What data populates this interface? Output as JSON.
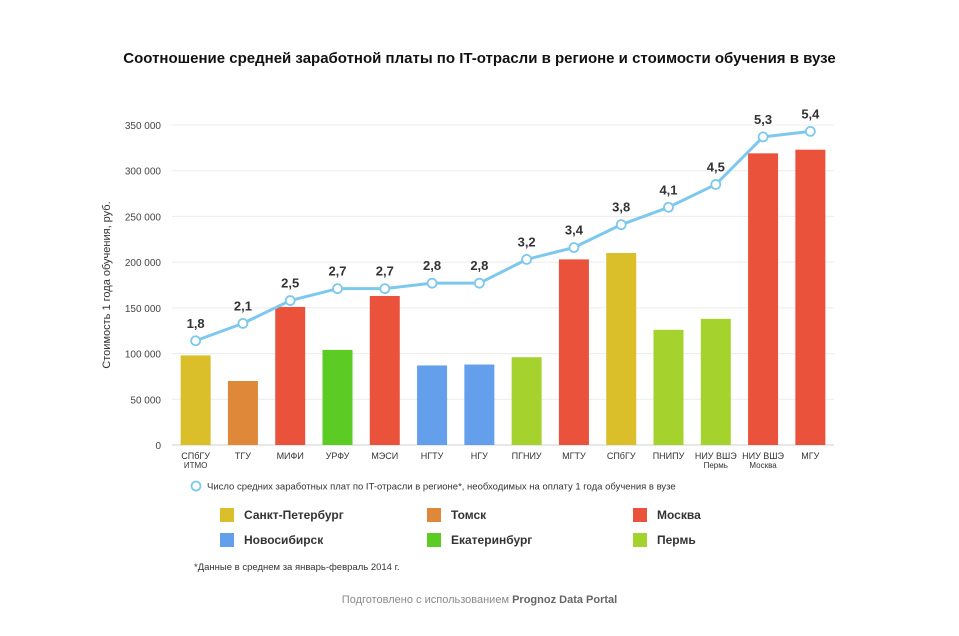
{
  "title": "Соотношение средней заработной платы по IT-отрасли в регионе и стоимости обучения в вузе",
  "chart_data": {
    "type": "bar",
    "title": "Соотношение средней заработной платы по IT-отрасли в регионе и стоимости обучения в вузе",
    "ylabel": "Стоимость 1 года обучения, руб.",
    "ylim": [
      0,
      350000
    ],
    "yticks": [
      0,
      50000,
      100000,
      150000,
      200000,
      250000,
      300000,
      350000
    ],
    "ytick_labels": [
      "0",
      "50 000",
      "100 000",
      "150 000",
      "200 000",
      "250 000",
      "300 000",
      "350 000"
    ],
    "grid": true,
    "categories": [
      [
        "СПбГУ",
        "ИТМО"
      ],
      [
        "ТГУ"
      ],
      [
        "МИФИ"
      ],
      [
        "УРФУ"
      ],
      [
        "МЭСИ"
      ],
      [
        "НГТУ"
      ],
      [
        "НГУ"
      ],
      [
        "ПГНИУ"
      ],
      [
        "МГТУ"
      ],
      [
        "СПбГУ"
      ],
      [
        "ПНИПУ"
      ],
      [
        "НИУ ВШЭ",
        "Пермь"
      ],
      [
        "НИУ ВШЭ",
        "Москва"
      ],
      [
        "МГУ"
      ]
    ],
    "bars": [
      {
        "value": 98000,
        "region": 0
      },
      {
        "value": 70000,
        "region": 1
      },
      {
        "value": 151000,
        "region": 2
      },
      {
        "value": 104000,
        "region": 4
      },
      {
        "value": 163000,
        "region": 2
      },
      {
        "value": 87000,
        "region": 3
      },
      {
        "value": 88000,
        "region": 3
      },
      {
        "value": 96000,
        "region": 5
      },
      {
        "value": 203000,
        "region": 2
      },
      {
        "value": 210000,
        "region": 0
      },
      {
        "value": 126000,
        "region": 5
      },
      {
        "value": 138000,
        "region": 5
      },
      {
        "value": 319000,
        "region": 2
      },
      {
        "value": 323000,
        "region": 2
      }
    ],
    "line": {
      "name": "Число средних заработных плат по IT-отрасли в регионе*, необходимых на оплату 1 года обучения в вузе",
      "color": "#7ec8ee",
      "labels": [
        "1,8",
        "2,1",
        "2,5",
        "2,7",
        "2,7",
        "2,8",
        "2,8",
        "3,2",
        "3,4",
        "3,8",
        "4,1",
        "4,5",
        "5,3",
        "5,4"
      ],
      "y_values": [
        114000,
        133000,
        158000,
        171000,
        171000,
        177000,
        177000,
        203000,
        216000,
        241000,
        260000,
        285000,
        337000,
        343000
      ]
    },
    "regions": [
      {
        "name": "Санкт-Петербург",
        "color": "#dbbf2a"
      },
      {
        "name": "Томск",
        "color": "#e0883a"
      },
      {
        "name": "Москва",
        "color": "#ea523c"
      },
      {
        "name": "Новосибирск",
        "color": "#639fea"
      },
      {
        "name": "Екатеринбург",
        "color": "#5ccb24"
      },
      {
        "name": "Пермь",
        "color": "#a6d22e"
      }
    ]
  },
  "note": "*Данные в среднем за январь-февраль 2014 г.",
  "footer": {
    "prefix": "Подготовлено с использованием ",
    "brand": "Prognoz Data Portal"
  }
}
